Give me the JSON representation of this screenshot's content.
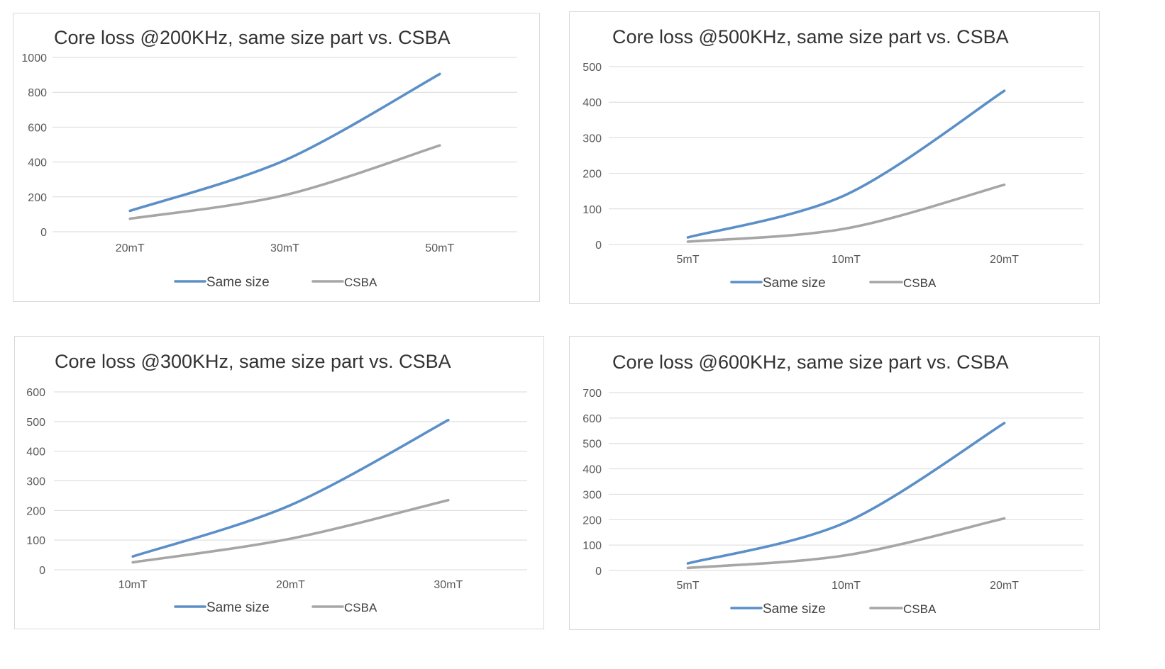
{
  "chart_data": [
    {
      "type": "line",
      "title": "Core loss @200KHz, same size part vs. CSBA",
      "xlabel": "",
      "ylabel": "",
      "categories": [
        "20mT",
        "30mT",
        "50mT"
      ],
      "ylim": [
        0,
        1000
      ],
      "yticks": [
        "0",
        "200",
        "400",
        "600",
        "800",
        "1000"
      ],
      "grid": true,
      "legend_position": "bottom",
      "series": [
        {
          "name": "Same size",
          "values": [
            120,
            410,
            905
          ],
          "color": "#5b8fc7"
        },
        {
          "name": "CSBA",
          "values": [
            75,
            210,
            495
          ],
          "color": "#a6a6a6"
        }
      ]
    },
    {
      "type": "line",
      "title": "Core loss @500KHz, same size part vs. CSBA",
      "xlabel": "",
      "ylabel": "",
      "categories": [
        "5mT",
        "10mT",
        "20mT"
      ],
      "ylim": [
        0,
        500
      ],
      "yticks": [
        "0",
        "100",
        "200",
        "300",
        "400",
        "500"
      ],
      "grid": true,
      "legend_position": "bottom",
      "series": [
        {
          "name": "Same size",
          "values": [
            20,
            140,
            432
          ],
          "color": "#5b8fc7"
        },
        {
          "name": "CSBA",
          "values": [
            8,
            45,
            168
          ],
          "color": "#a6a6a6"
        }
      ]
    },
    {
      "type": "line",
      "title": "Core loss @300KHz, same size part vs. CSBA",
      "xlabel": "",
      "ylabel": "",
      "categories": [
        "10mT",
        "20mT",
        "30mT"
      ],
      "ylim": [
        0,
        600
      ],
      "yticks": [
        "0",
        "100",
        "200",
        "300",
        "400",
        "500",
        "600"
      ],
      "grid": true,
      "legend_position": "bottom",
      "series": [
        {
          "name": "Same size",
          "values": [
            45,
            218,
            505
          ],
          "color": "#5b8fc7"
        },
        {
          "name": "CSBA",
          "values": [
            25,
            105,
            235
          ],
          "color": "#a6a6a6"
        }
      ]
    },
    {
      "type": "line",
      "title": "Core loss @600KHz, same size part vs. CSBA",
      "xlabel": "",
      "ylabel": "",
      "categories": [
        "5mT",
        "10mT",
        "20mT"
      ],
      "ylim": [
        0,
        700
      ],
      "yticks": [
        "0",
        "100",
        "200",
        "300",
        "400",
        "500",
        "600",
        "700"
      ],
      "grid": true,
      "legend_position": "bottom",
      "series": [
        {
          "name": "Same size",
          "values": [
            28,
            190,
            580
          ],
          "color": "#5b8fc7"
        },
        {
          "name": "CSBA",
          "values": [
            10,
            60,
            205
          ],
          "color": "#a6a6a6"
        }
      ]
    }
  ]
}
